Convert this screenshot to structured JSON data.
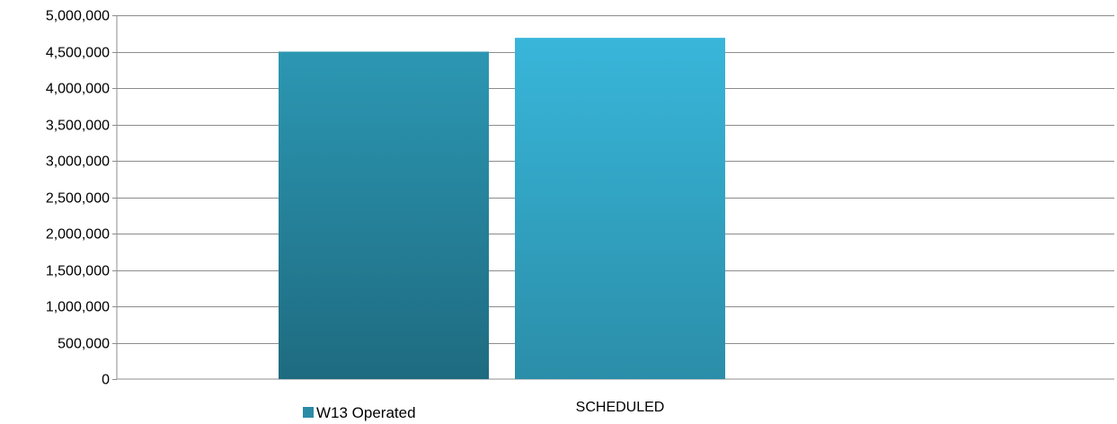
{
  "chart_data": {
    "type": "bar",
    "title": "",
    "xlabel": "",
    "ylabel": "",
    "ylim": [
      0,
      5000000
    ],
    "yticks": [
      0,
      500000,
      1000000,
      1500000,
      2000000,
      2500000,
      3000000,
      3500000,
      4000000,
      4500000,
      5000000
    ],
    "ytick_labels": [
      "0",
      "500,000",
      "1,000,000",
      "1,500,000",
      "2,000,000",
      "2,500,000",
      "3,000,000",
      "3,500,000",
      "4,000,000",
      "4,500,000",
      "5,000,000"
    ],
    "grid": true,
    "series": [
      {
        "name": "W13 Operated",
        "values": [
          4500000
        ],
        "color": "#2a8ba6"
      },
      {
        "name": "",
        "values": [
          4690000
        ],
        "color": "#34b0d3"
      }
    ],
    "bar_labels": [
      "",
      "SCHEDULED"
    ],
    "legend": {
      "placement": "bottom-left",
      "entries": [
        "W13 Operated"
      ]
    }
  }
}
